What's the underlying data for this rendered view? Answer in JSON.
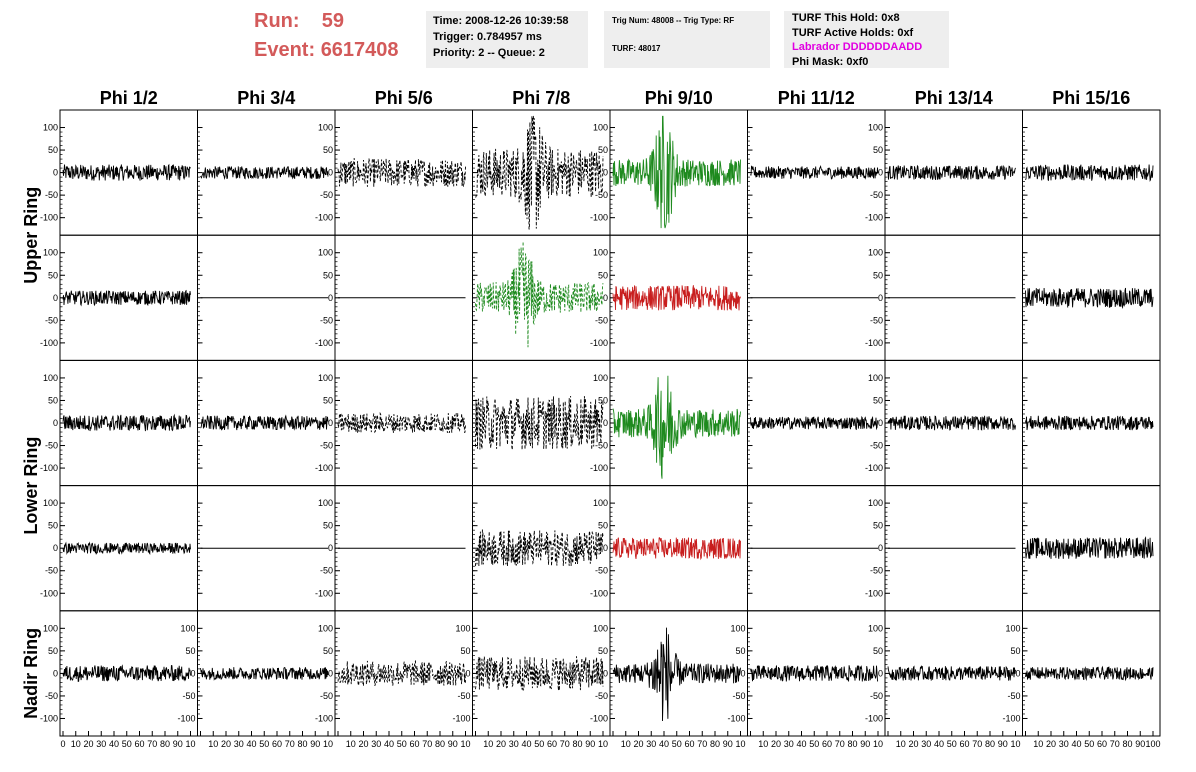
{
  "header": {
    "run_label": "Run:",
    "run_value": "59",
    "event_label": "Event:",
    "event_value": "6617408",
    "time": "Time: 2008-12-26 10:39:58",
    "trigger": "Trigger: 0.784957 ms",
    "priority": "Priority: 2 -- Queue: 2",
    "trig_num": "Trig Num: 48008 -- Trig Type: RF",
    "turf": "TURF: 48017",
    "turf_this_hold": "TURF This Hold: 0x8",
    "turf_active_holds": "TURF Active Holds: 0xf",
    "labrador": "Labrador DDDDDDAADD",
    "phi_mask": "Phi Mask: 0xf0"
  },
  "colors": {
    "header_red": "#d35a5a",
    "trace_black": "#000000",
    "trace_green": "#1e8a1e",
    "trace_red": "#c81e1e",
    "info_box": "#eeeeee",
    "magenta_text": "#e100e1"
  },
  "chart_data": {
    "type": "line",
    "title": "",
    "columns": [
      "Phi 1/2",
      "Phi 3/4",
      "Phi 5/6",
      "Phi 7/8",
      "Phi 9/10",
      "Phi 11/12",
      "Phi 13/14",
      "Phi 15/16"
    ],
    "row_groups": [
      "Upper Ring",
      "Lower Ring",
      "Nadir Ring"
    ],
    "rows": 5,
    "x_range": [
      0,
      100
    ],
    "y_range": [
      -130,
      130
    ],
    "y_ticks": [
      -100,
      -50,
      0,
      50,
      100
    ],
    "x_ticks": [
      0,
      10,
      20,
      30,
      40,
      50,
      60,
      70,
      80,
      90,
      100
    ],
    "x_tick_labels_per_panel": [
      "0",
      "10",
      "20",
      "30",
      "40",
      "50",
      "60",
      "70",
      "80",
      "90",
      "10"
    ],
    "x_tick_labels_last_panel": [
      "10",
      "20",
      "30",
      "40",
      "50",
      "60",
      "70",
      "80",
      "90",
      "100"
    ],
    "panels": [
      [
        {
          "style": "solid",
          "color": "black",
          "amp": 18,
          "burst": 0
        },
        {
          "style": "solid",
          "color": "black",
          "amp": 14,
          "burst": 0
        },
        {
          "style": "dashed",
          "color": "black",
          "amp": 32,
          "burst": 0
        },
        {
          "style": "dashed",
          "color": "black",
          "amp": 55,
          "burst": 95,
          "burst_at": 45
        },
        {
          "style": "solid",
          "color": "green",
          "amp": 30,
          "burst": 110,
          "burst_at": 40
        },
        {
          "style": "solid",
          "color": "black",
          "amp": 14,
          "burst": 0
        },
        {
          "style": "solid",
          "color": "black",
          "amp": 16,
          "burst": 0
        },
        {
          "style": "solid",
          "color": "black",
          "amp": 18,
          "burst": 0
        }
      ],
      [
        {
          "style": "solid",
          "color": "black",
          "amp": 16,
          "burst": 0
        },
        {
          "style": "flat",
          "color": "black",
          "amp": 0,
          "burst": 0
        },
        {
          "style": "flat",
          "color": "black",
          "amp": 0,
          "burst": 0
        },
        {
          "style": "dashed",
          "color": "green",
          "amp": 35,
          "burst": 95,
          "burst_at": 38
        },
        {
          "style": "solid",
          "color": "red",
          "amp": 28,
          "burst": 0
        },
        {
          "style": "flat",
          "color": "black",
          "amp": 0,
          "burst": 0
        },
        {
          "style": "flat",
          "color": "black",
          "amp": 0,
          "burst": 0
        },
        {
          "style": "solid",
          "color": "black",
          "amp": 22,
          "burst": 0
        }
      ],
      [
        {
          "style": "solid",
          "color": "black",
          "amp": 18,
          "burst": 0
        },
        {
          "style": "solid",
          "color": "black",
          "amp": 16,
          "burst": 0
        },
        {
          "style": "dashed",
          "color": "black",
          "amp": 22,
          "burst": 0
        },
        {
          "style": "dashed",
          "color": "black",
          "amp": 60,
          "burst": 0
        },
        {
          "style": "solid",
          "color": "green",
          "amp": 32,
          "burst": 100,
          "burst_at": 40
        },
        {
          "style": "solid",
          "color": "black",
          "amp": 14,
          "burst": 0
        },
        {
          "style": "solid",
          "color": "black",
          "amp": 16,
          "burst": 0
        },
        {
          "style": "solid",
          "color": "black",
          "amp": 16,
          "burst": 0
        }
      ],
      [
        {
          "style": "solid",
          "color": "black",
          "amp": 12,
          "burst": 0
        },
        {
          "style": "flat",
          "color": "black",
          "amp": 0,
          "burst": 0
        },
        {
          "style": "flat",
          "color": "black",
          "amp": 0,
          "burst": 0
        },
        {
          "style": "dashed",
          "color": "black",
          "amp": 40,
          "burst": 0
        },
        {
          "style": "solid",
          "color": "red",
          "amp": 24,
          "burst": 0
        },
        {
          "style": "flat",
          "color": "black",
          "amp": 0,
          "burst": 0
        },
        {
          "style": "flat",
          "color": "black",
          "amp": 0,
          "burst": 0
        },
        {
          "style": "solid",
          "color": "black",
          "amp": 24,
          "burst": 0
        }
      ],
      [
        {
          "style": "solid",
          "color": "black",
          "amp": 18,
          "burst": 0
        },
        {
          "style": "solid",
          "color": "black",
          "amp": 14,
          "burst": 0
        },
        {
          "style": "dashed",
          "color": "black",
          "amp": 28,
          "burst": 0
        },
        {
          "style": "dashed",
          "color": "black",
          "amp": 38,
          "burst": 0
        },
        {
          "style": "solid",
          "color": "black",
          "amp": 22,
          "burst": 95,
          "burst_at": 40
        },
        {
          "style": "solid",
          "color": "black",
          "amp": 18,
          "burst": 0
        },
        {
          "style": "solid",
          "color": "black",
          "amp": 16,
          "burst": 0
        },
        {
          "style": "solid",
          "color": "black",
          "amp": 14,
          "burst": 0
        }
      ]
    ]
  }
}
